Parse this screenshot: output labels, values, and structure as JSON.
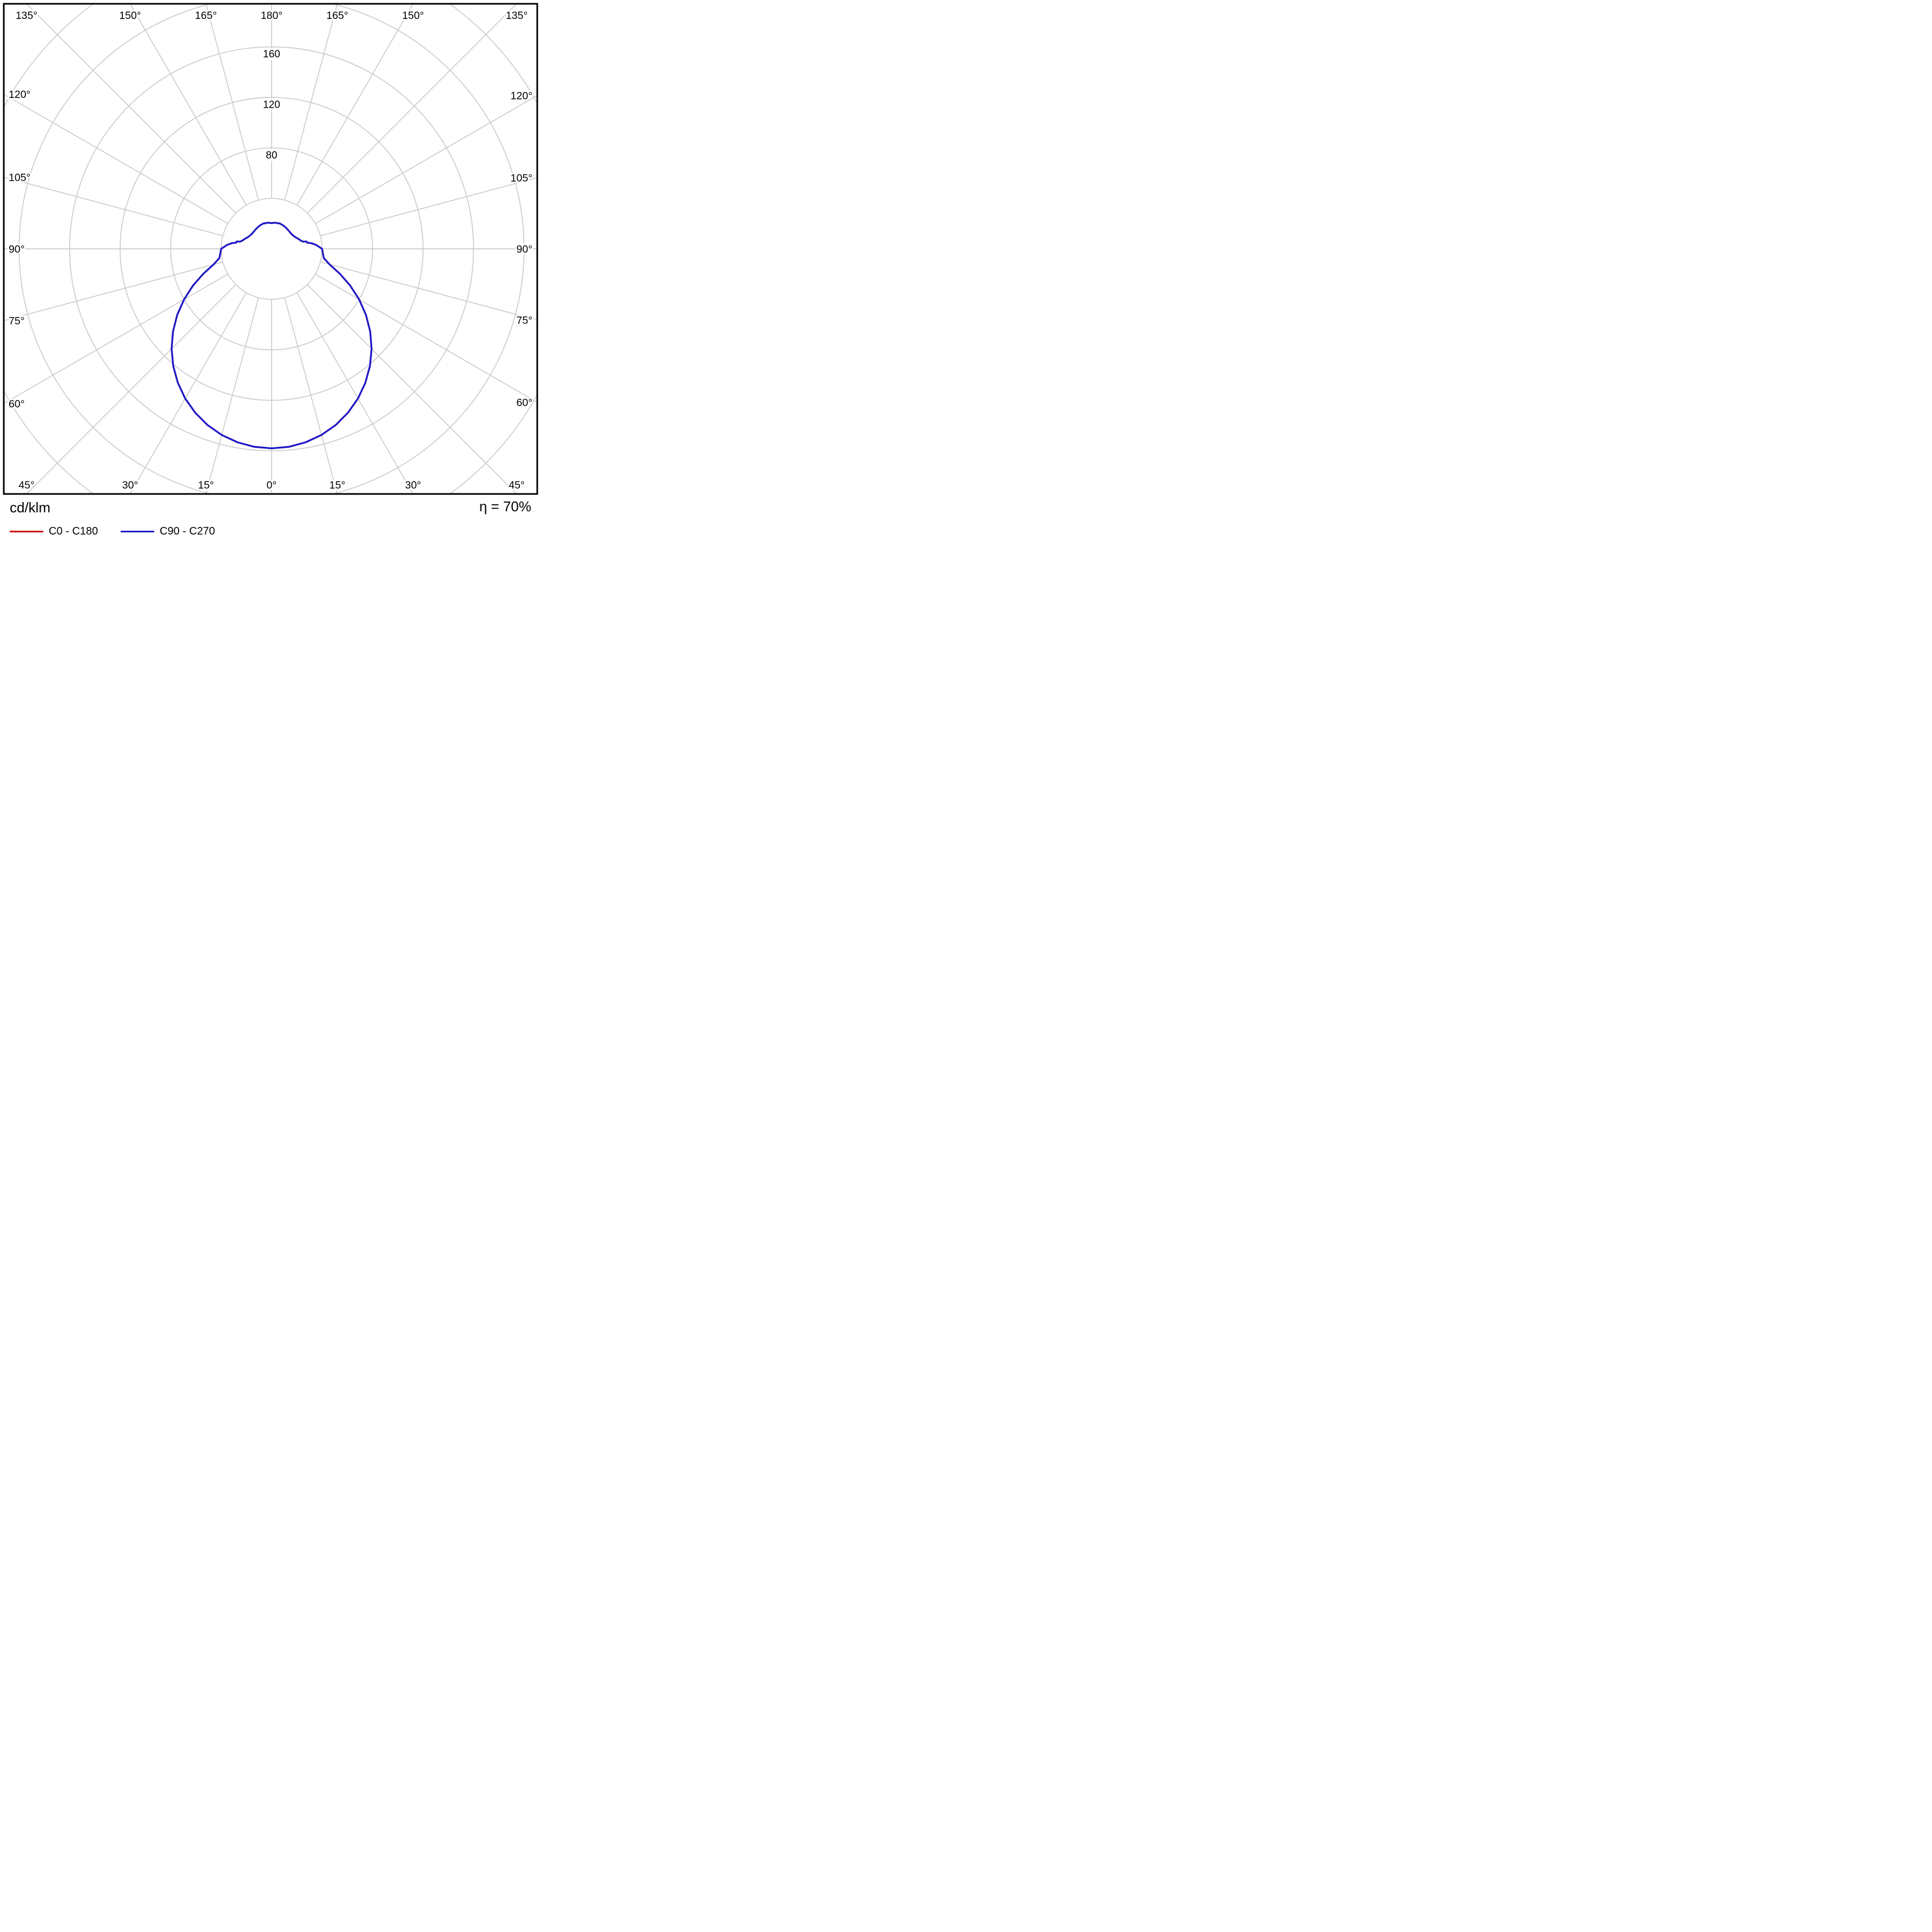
{
  "chart_data": {
    "type": "polar",
    "subtype": "luminous-intensity-distribution",
    "units": "cd/klm",
    "efficiency": "η = 70%",
    "angle_unit": "deg",
    "angle_zero_position": "bottom",
    "angle_step": 15,
    "angle_labels": [
      0,
      15,
      30,
      45,
      60,
      75,
      90,
      105,
      120,
      135,
      150,
      165,
      180
    ],
    "radial_rings": [
      40,
      80,
      120,
      160,
      200,
      240
    ],
    "radial_ring_labels": [
      80,
      120,
      160
    ],
    "radial_visible_max": 160,
    "grid_color": "#cccccc",
    "border_color": "#000000",
    "series": [
      {
        "name": "C0 - C180",
        "color": "#cc0000",
        "profile_deg_cdklm": [
          [
            0,
            158
          ],
          [
            5,
            157.4
          ],
          [
            10,
            155.6
          ],
          [
            15,
            152.6
          ],
          [
            20,
            148.5
          ],
          [
            25,
            143.2
          ],
          [
            30,
            136.9
          ],
          [
            35,
            129.5
          ],
          [
            40,
            121.2
          ],
          [
            45,
            112
          ],
          [
            50,
            102
          ],
          [
            55,
            91.3
          ],
          [
            60,
            80
          ],
          [
            65,
            68.6
          ],
          [
            70,
            57.5
          ],
          [
            75,
            47.5
          ],
          [
            80,
            42
          ],
          [
            85,
            40.8
          ],
          [
            90,
            40
          ],
          [
            95,
            35.5
          ],
          [
            98,
            32
          ],
          [
            100,
            28.5
          ],
          [
            102,
            28.3
          ],
          [
            103,
            25.5
          ],
          [
            106,
            24
          ],
          [
            110,
            22.8
          ],
          [
            115,
            21.3
          ],
          [
            120,
            20.3
          ],
          [
            125,
            19.8
          ],
          [
            130,
            19.6
          ],
          [
            135,
            19.7
          ],
          [
            140,
            19.9
          ],
          [
            145,
            20.2
          ],
          [
            150,
            20.5
          ],
          [
            155,
            20.8
          ],
          [
            160,
            21
          ],
          [
            163,
            21.2
          ],
          [
            166,
            20.8
          ],
          [
            170,
            21
          ],
          [
            175,
            20.7
          ],
          [
            180,
            20.4
          ]
        ]
      },
      {
        "name": "C90 - C270",
        "color": "#1a1acc",
        "profile_deg_cdklm": [
          [
            0,
            158
          ],
          [
            5,
            157.4
          ],
          [
            10,
            155.6
          ],
          [
            15,
            152.6
          ],
          [
            20,
            148.5
          ],
          [
            25,
            143.2
          ],
          [
            30,
            136.9
          ],
          [
            35,
            129.5
          ],
          [
            40,
            121.2
          ],
          [
            45,
            112
          ],
          [
            50,
            102
          ],
          [
            55,
            91.3
          ],
          [
            60,
            80
          ],
          [
            65,
            68.6
          ],
          [
            70,
            57.5
          ],
          [
            75,
            47.5
          ],
          [
            80,
            42
          ],
          [
            85,
            40.8
          ],
          [
            90,
            40
          ],
          [
            95,
            35.5
          ],
          [
            98,
            32
          ],
          [
            100,
            28.5
          ],
          [
            102,
            28.3
          ],
          [
            103,
            25.5
          ],
          [
            106,
            24
          ],
          [
            110,
            22.8
          ],
          [
            115,
            21.3
          ],
          [
            120,
            20.3
          ],
          [
            125,
            19.8
          ],
          [
            130,
            19.6
          ],
          [
            135,
            19.7
          ],
          [
            140,
            19.9
          ],
          [
            145,
            20.2
          ],
          [
            150,
            20.5
          ],
          [
            155,
            20.8
          ],
          [
            160,
            21
          ],
          [
            163,
            21.2
          ],
          [
            166,
            20.8
          ],
          [
            170,
            21
          ],
          [
            175,
            20.7
          ],
          [
            180,
            20.4
          ]
        ]
      }
    ]
  }
}
